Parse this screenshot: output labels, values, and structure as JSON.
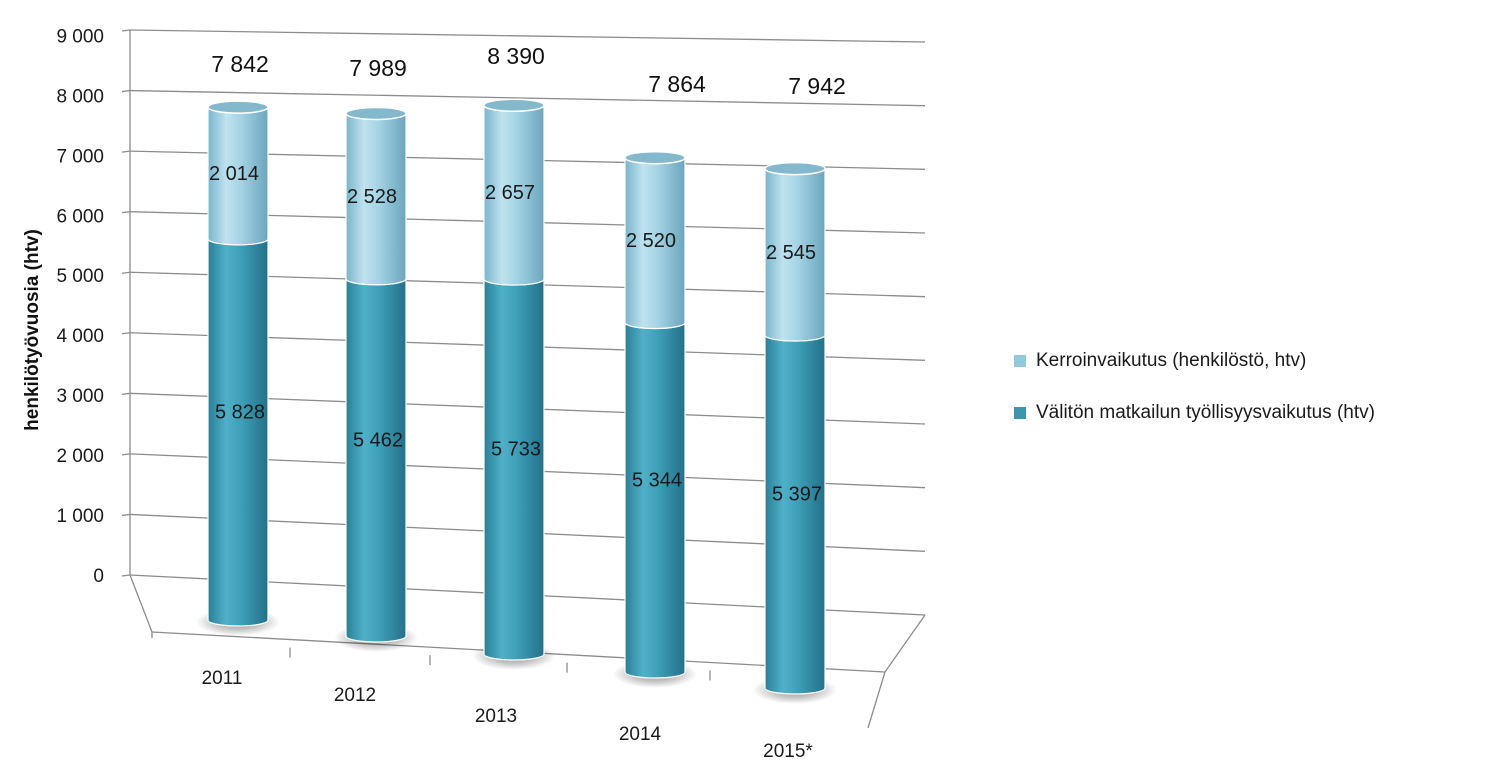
{
  "chart_data": {
    "type": "bar",
    "stacked": true,
    "three_d": true,
    "ylabel": "henkilötyövuosia (htv)",
    "ylim": [
      0,
      9000
    ],
    "yticks": [
      "0",
      "1 000",
      "2 000",
      "3 000",
      "4 000",
      "5 000",
      "6 000",
      "7 000",
      "8 000",
      "9 000"
    ],
    "categories": [
      "2011",
      "2012",
      "2013",
      "2014",
      "2015*"
    ],
    "series": [
      {
        "name": "Välitön matkailun työllisyysvaikutus (htv)",
        "color": "#3b97ae",
        "values": [
          5828,
          5462,
          5733,
          5344,
          5397
        ],
        "labels": [
          "5 828",
          "5 462",
          "5 733",
          "5 344",
          "5 397"
        ]
      },
      {
        "name": "Kerroinvaikutus (henkilöstö, htv)",
        "color": "#92c9dd",
        "values": [
          2014,
          2528,
          2657,
          2520,
          2545
        ],
        "labels": [
          "2 014",
          "2 528",
          "2 657",
          "2 520",
          "2 545"
        ]
      }
    ],
    "totals": [
      "7 842",
      "7 989",
      "8 390",
      "7 864",
      "7 942"
    ],
    "legend_position": "right",
    "grid": true
  },
  "legend": [
    {
      "label": "Kerroinvaikutus (henkilöstö, htv)",
      "color": "#92c9dd"
    },
    {
      "label": "Välitön matkailun työllisyysvaikutus (htv)",
      "color": "#3b97ae"
    }
  ]
}
